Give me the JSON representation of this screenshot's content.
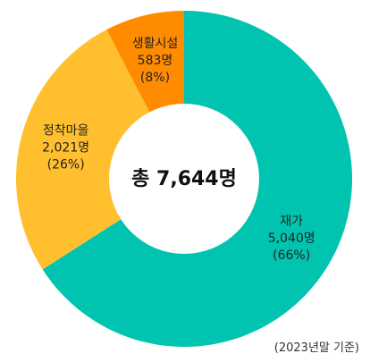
{
  "chart_data": {
    "type": "pie",
    "variant": "donut",
    "center_text": "총 7,644명",
    "footnote": "(2023년말 기준)",
    "slices": [
      {
        "name": "재가",
        "value": 5040,
        "value_label": "5,040명",
        "percent_label": "(66%)",
        "color": "#00c4b0"
      },
      {
        "name": "정착마을",
        "value": 2021,
        "value_label": "2,021명",
        "percent_label": "(26%)",
        "color": "#ffbf2f"
      },
      {
        "name": "생활시설",
        "value": 583,
        "value_label": "583명",
        "percent_label": "(8%)",
        "color": "#ff8c00"
      }
    ]
  }
}
